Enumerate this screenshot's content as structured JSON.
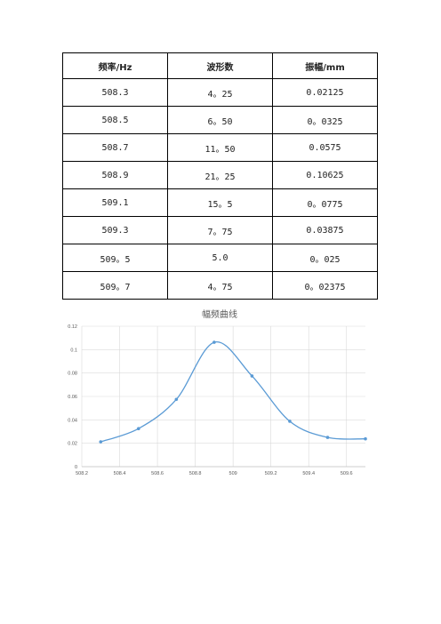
{
  "table": {
    "headers": [
      "频率/Hz",
      "波形数",
      "振幅/mm"
    ],
    "rows": [
      [
        "508.3",
        "4。25",
        "0.02125"
      ],
      [
        "508.5",
        "6。50",
        "0。0325"
      ],
      [
        "508.7",
        "11。50",
        "0.0575"
      ],
      [
        "508.9",
        "21。25",
        "0.10625"
      ],
      [
        "509.1",
        "15。5",
        "0。0775"
      ],
      [
        "509.3",
        "7。75",
        "0.03875"
      ],
      [
        "509。5",
        "5.0",
        "0。025"
      ],
      [
        "509。7",
        "4。75",
        "0。02375"
      ]
    ]
  },
  "chart_data": {
    "type": "line",
    "title": "幅频曲线",
    "smooth": true,
    "markers": true,
    "grid": true,
    "legend": "none",
    "color": "#5b9bd5",
    "x": [
      508.3,
      508.5,
      508.7,
      508.9,
      509.1,
      509.3,
      509.5,
      509.7
    ],
    "y": [
      0.02125,
      0.0325,
      0.0575,
      0.10625,
      0.0775,
      0.03875,
      0.025,
      0.02375
    ],
    "xlim": [
      508.2,
      509.7
    ],
    "ylim": [
      0,
      0.12
    ],
    "xticks": [
      "508.2",
      "508.4",
      "508.6",
      "508.8",
      "509",
      "509.2",
      "509.4",
      "509.6"
    ],
    "yticks": [
      "0",
      "0.02",
      "0.04",
      "0.06",
      "0.08",
      "0.1",
      "0.12"
    ],
    "xtick_values": [
      508.2,
      508.4,
      508.6,
      508.8,
      509.0,
      509.2,
      509.4,
      509.6
    ],
    "ytick_values": [
      0,
      0.02,
      0.04,
      0.06,
      0.08,
      0.1,
      0.12
    ]
  }
}
